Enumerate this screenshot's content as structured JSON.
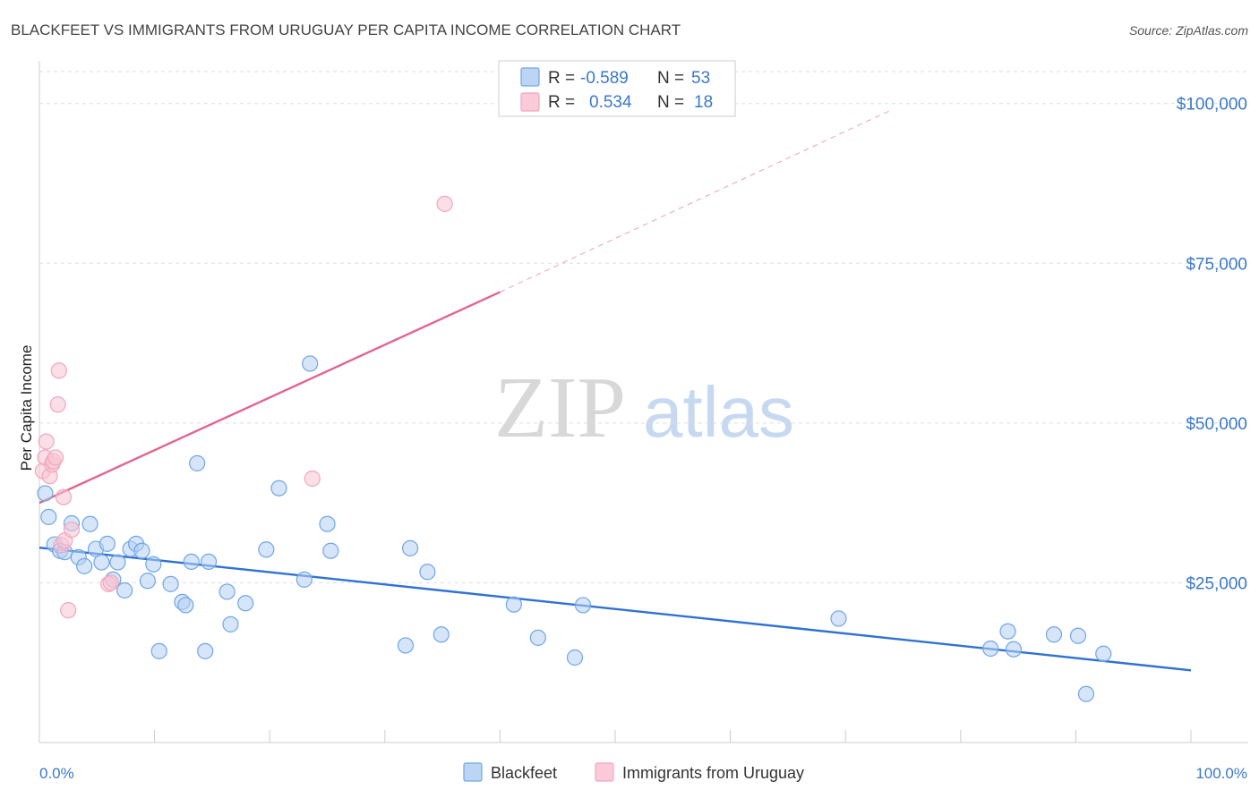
{
  "chart_data": {
    "type": "scatter",
    "title": "BLACKFEET VS IMMIGRANTS FROM URUGUAY PER CAPITA INCOME CORRELATION CHART",
    "source": "Source: ZipAtlas.com",
    "ylabel": "Per Capita Income",
    "xlim": [
      0,
      100
    ],
    "ylim": [
      0,
      105000
    ],
    "x_tick_labels": [
      "0.0%",
      "100.0%"
    ],
    "y_ticks": [
      {
        "value": 25000,
        "label": "$25,000"
      },
      {
        "value": 50000,
        "label": "$50,000"
      },
      {
        "value": 75000,
        "label": "$75,000"
      },
      {
        "value": 100000,
        "label": "$100,000"
      }
    ],
    "grid": true,
    "legend_position": "top-center",
    "watermark": {
      "zip": "ZIP",
      "atlas": "atlas"
    },
    "colors": {
      "blackfeet": "#6fa6e6",
      "blackfeet_line": "#2f72d3",
      "uruguay": "#f3a5bd",
      "uruguay_line": "#e2658f",
      "tick_text": "#3b78c9",
      "grid": "#dddddd"
    },
    "series": [
      {
        "name": "Blackfeet",
        "legend": {
          "r_label": "R =",
          "r_value": "-0.589",
          "n_label": "N =",
          "n_value": "53"
        },
        "trend": {
          "x0": 0,
          "y0": 30500,
          "x1": 100,
          "y1": 11300
        },
        "points": [
          [
            0.5,
            39000
          ],
          [
            0.8,
            35300
          ],
          [
            1.3,
            31000
          ],
          [
            1.8,
            30000
          ],
          [
            2.2,
            29800
          ],
          [
            2.8,
            34300
          ],
          [
            3.4,
            29000
          ],
          [
            3.9,
            27600
          ],
          [
            4.4,
            34200
          ],
          [
            4.9,
            30300
          ],
          [
            5.4,
            28200
          ],
          [
            5.9,
            31100
          ],
          [
            6.4,
            25500
          ],
          [
            6.8,
            28200
          ],
          [
            7.4,
            23800
          ],
          [
            7.9,
            30300
          ],
          [
            8.4,
            31100
          ],
          [
            8.9,
            30000
          ],
          [
            9.4,
            25300
          ],
          [
            9.9,
            27900
          ],
          [
            10.4,
            14300
          ],
          [
            11.4,
            24800
          ],
          [
            12.4,
            22000
          ],
          [
            12.7,
            21500
          ],
          [
            13.2,
            28300
          ],
          [
            13.7,
            43700
          ],
          [
            14.4,
            14300
          ],
          [
            14.7,
            28300
          ],
          [
            16.3,
            23600
          ],
          [
            16.6,
            18500
          ],
          [
            17.9,
            21800
          ],
          [
            19.7,
            30200
          ],
          [
            20.8,
            39800
          ],
          [
            23.0,
            25500
          ],
          [
            23.5,
            59300
          ],
          [
            25.0,
            34200
          ],
          [
            25.3,
            30000
          ],
          [
            31.8,
            15200
          ],
          [
            32.2,
            30400
          ],
          [
            33.7,
            26700
          ],
          [
            34.9,
            16900
          ],
          [
            41.2,
            21600
          ],
          [
            43.3,
            16400
          ],
          [
            46.5,
            13300
          ],
          [
            47.2,
            21500
          ],
          [
            69.4,
            19400
          ],
          [
            82.6,
            14700
          ],
          [
            84.1,
            17400
          ],
          [
            84.6,
            14600
          ],
          [
            88.1,
            16900
          ],
          [
            90.2,
            16700
          ],
          [
            90.9,
            7600
          ],
          [
            92.4,
            13900
          ]
        ]
      },
      {
        "name": "Immigrants from Uruguay",
        "legend": {
          "r_label": "R =",
          "r_value": "0.534",
          "n_label": "N =",
          "n_value": "18"
        },
        "trend": {
          "x0": 0,
          "y0": 37500,
          "x1": 40,
          "y1": 70500,
          "dash_x1": 74,
          "dash_y1": 99000
        },
        "points": [
          [
            0.3,
            42500
          ],
          [
            0.5,
            44600
          ],
          [
            0.6,
            47100
          ],
          [
            0.9,
            41700
          ],
          [
            1.1,
            43500
          ],
          [
            1.2,
            44000
          ],
          [
            1.4,
            44600
          ],
          [
            1.6,
            52900
          ],
          [
            1.7,
            58200
          ],
          [
            1.9,
            30900
          ],
          [
            2.1,
            38400
          ],
          [
            2.2,
            31600
          ],
          [
            2.5,
            20700
          ],
          [
            2.8,
            33300
          ],
          [
            6.0,
            24800
          ],
          [
            6.2,
            25000
          ],
          [
            23.7,
            41300
          ],
          [
            35.2,
            84300
          ]
        ]
      }
    ]
  }
}
